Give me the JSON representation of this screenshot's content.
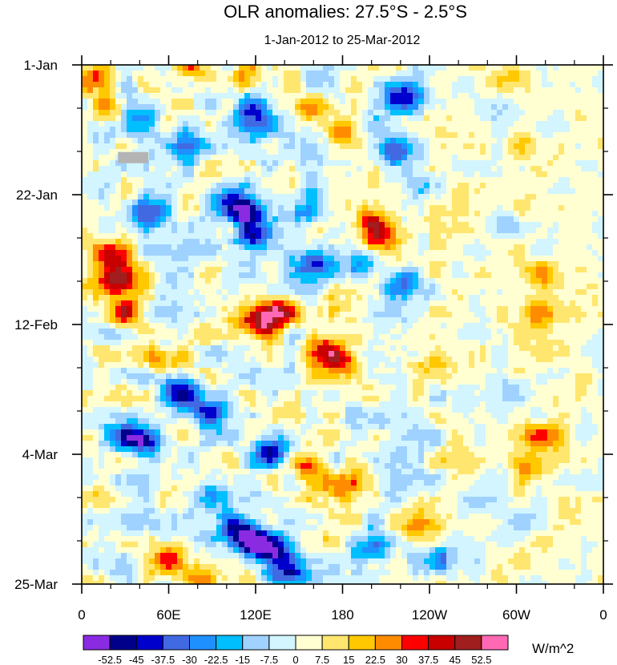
{
  "chart_data": {
    "type": "heatmap",
    "title": "OLR anomalies: 27.5°S - 2.5°S",
    "subtitle": "1-Jan-2012 to 25-Mar-2012",
    "x_tick_labels": [
      "0",
      "60E",
      "120E",
      "180",
      "120W",
      "60W",
      "0"
    ],
    "x_ticks_deg_east": [
      0,
      60,
      120,
      180,
      240,
      300,
      360
    ],
    "x_range_deg_east": [
      0,
      360
    ],
    "y_tick_labels": [
      "1-Jan",
      "22-Jan",
      "12-Feb",
      "4-Mar",
      "25-Mar"
    ],
    "y_range": [
      "1-Jan-2012",
      "25-Mar-2012"
    ],
    "y_direction": "time increases downward",
    "colorbar": {
      "unit_label": "W/m^2",
      "levels": [
        -52.5,
        -45,
        -37.5,
        -30,
        -22.5,
        -15,
        -7.5,
        0,
        7.5,
        15,
        22.5,
        30,
        37.5,
        45,
        52.5
      ],
      "level_labels": [
        "-52.5",
        "-45",
        "-37.5",
        "-30",
        "-22.5",
        "-15",
        "-7.5",
        "0",
        "7.5",
        "15",
        "22.5",
        "30",
        "37.5",
        "45",
        "52.5"
      ],
      "colors": [
        "#8a2be2",
        "#00008b",
        "#0000cd",
        "#4169e1",
        "#1e90ff",
        "#00bfff",
        "#a0d2ff",
        "#d2f5ff",
        "#ffffd2",
        "#ffe66e",
        "#ffc800",
        "#ff8c00",
        "#ff0000",
        "#c80000",
        "#a01e1e",
        "#ff69b4"
      ]
    },
    "features": [
      {
        "lon": 135,
        "date": "10-Feb-2012",
        "value": 55
      },
      {
        "lon": 120,
        "date": "12-Feb-2012",
        "value": 42
      },
      {
        "lon": 168,
        "date": "16-Feb-2012",
        "value": 35
      },
      {
        "lon": 178,
        "date": "18-Feb-2012",
        "value": 32
      },
      {
        "lon": 25,
        "date": "5-Feb-2012",
        "value": 42
      },
      {
        "lon": 30,
        "date": "10-Feb-2012",
        "value": 35
      },
      {
        "lon": 20,
        "date": "1-Feb-2012",
        "value": 30
      },
      {
        "lon": 55,
        "date": "18-Feb-2012",
        "value": 32
      },
      {
        "lon": 10,
        "date": "3-Jan-2012",
        "value": 30
      },
      {
        "lon": 18,
        "date": "8-Jan-2012",
        "value": 25
      },
      {
        "lon": 75,
        "date": "1-Jan-2012",
        "value": 28
      },
      {
        "lon": 108,
        "date": "3-Jan-2012",
        "value": 25
      },
      {
        "lon": 160,
        "date": "8-Jan-2012",
        "value": 30
      },
      {
        "lon": 180,
        "date": "12-Jan-2012",
        "value": 28
      },
      {
        "lon": 200,
        "date": "26-Jan-2012",
        "value": 32
      },
      {
        "lon": 205,
        "date": "29-Jan-2012",
        "value": 30
      },
      {
        "lon": 155,
        "date": "6-Mar-2012",
        "value": 32
      },
      {
        "lon": 180,
        "date": "10-Mar-2012",
        "value": 30
      },
      {
        "lon": 60,
        "date": "21-Mar-2012",
        "value": 30
      },
      {
        "lon": 80,
        "date": "24-Mar-2012",
        "value": 25
      },
      {
        "lon": 315,
        "date": "10-Feb-2012",
        "value": 35
      },
      {
        "lon": 320,
        "date": "4-Feb-2012",
        "value": 30
      },
      {
        "lon": 318,
        "date": "1-Mar-2012",
        "value": 45
      },
      {
        "lon": 313,
        "date": "6-Mar-2012",
        "value": 35
      },
      {
        "lon": 298,
        "date": "3-Jan-2012",
        "value": 28
      },
      {
        "lon": 303,
        "date": "14-Jan-2012",
        "value": 22
      },
      {
        "lon": 270,
        "date": "5-Mar-2012",
        "value": 18
      },
      {
        "lon": 230,
        "date": "16-Mar-2012",
        "value": 15
      },
      {
        "lon": 245,
        "date": "18-Feb-2012",
        "value": 15
      },
      {
        "lon": 118,
        "date": "18-Mar-2012",
        "value": -50
      },
      {
        "lon": 132,
        "date": "20-Mar-2012",
        "value": -48
      },
      {
        "lon": 142,
        "date": "23-Mar-2012",
        "value": -42
      },
      {
        "lon": 105,
        "date": "16-Mar-2012",
        "value": -35
      },
      {
        "lon": 112,
        "date": "25-Jan-2012",
        "value": -45
      },
      {
        "lon": 118,
        "date": "29-Jan-2012",
        "value": -40
      },
      {
        "lon": 100,
        "date": "23-Jan-2012",
        "value": -30
      },
      {
        "lon": 118,
        "date": "8-Jan-2012",
        "value": -40
      },
      {
        "lon": 120,
        "date": "11-Jan-2012",
        "value": -30
      },
      {
        "lon": 40,
        "date": "10-Jan-2012",
        "value": -28
      },
      {
        "lon": 72,
        "date": "14-Jan-2012",
        "value": -35
      },
      {
        "lon": 45,
        "date": "25-Jan-2012",
        "value": -30
      },
      {
        "lon": 70,
        "date": "23-Feb-2012",
        "value": -45
      },
      {
        "lon": 90,
        "date": "26-Feb-2012",
        "value": -35
      },
      {
        "lon": 45,
        "date": "2-Mar-2012",
        "value": -35
      },
      {
        "lon": 90,
        "date": "11-Mar-2012",
        "value": -38
      },
      {
        "lon": 128,
        "date": "4-Mar-2012",
        "value": -38
      },
      {
        "lon": 30,
        "date": "1-Mar-2012",
        "value": -30
      },
      {
        "lon": 220,
        "date": "6-Jan-2012",
        "value": -40
      },
      {
        "lon": 215,
        "date": "15-Jan-2012",
        "value": -30
      },
      {
        "lon": 195,
        "date": "2-Feb-2012",
        "value": -30
      },
      {
        "lon": 222,
        "date": "5-Feb-2012",
        "value": -32
      },
      {
        "lon": 150,
        "date": "25-Jan-2012",
        "value": -25
      },
      {
        "lon": 160,
        "date": "2-Feb-2012",
        "value": -30
      },
      {
        "lon": 200,
        "date": "20-Mar-2012",
        "value": -30
      },
      {
        "lon": 255,
        "date": "21-Mar-2012",
        "value": -30
      },
      {
        "lon": 270,
        "date": "12-Mar-2012",
        "value": -22
      },
      {
        "lon": 300,
        "date": "23-Feb-2012",
        "value": -30
      },
      {
        "lon": 290,
        "date": "10-Jan-2012",
        "value": -22
      },
      {
        "lon": 303,
        "date": "15-Mar-2012",
        "value": -22
      },
      {
        "lon": 290,
        "date": "27-Jan-2012",
        "value": -20
      }
    ],
    "missing_data": [
      {
        "lon_range": [
          25,
          46
        ],
        "date": "16-Jan-2012"
      }
    ]
  }
}
